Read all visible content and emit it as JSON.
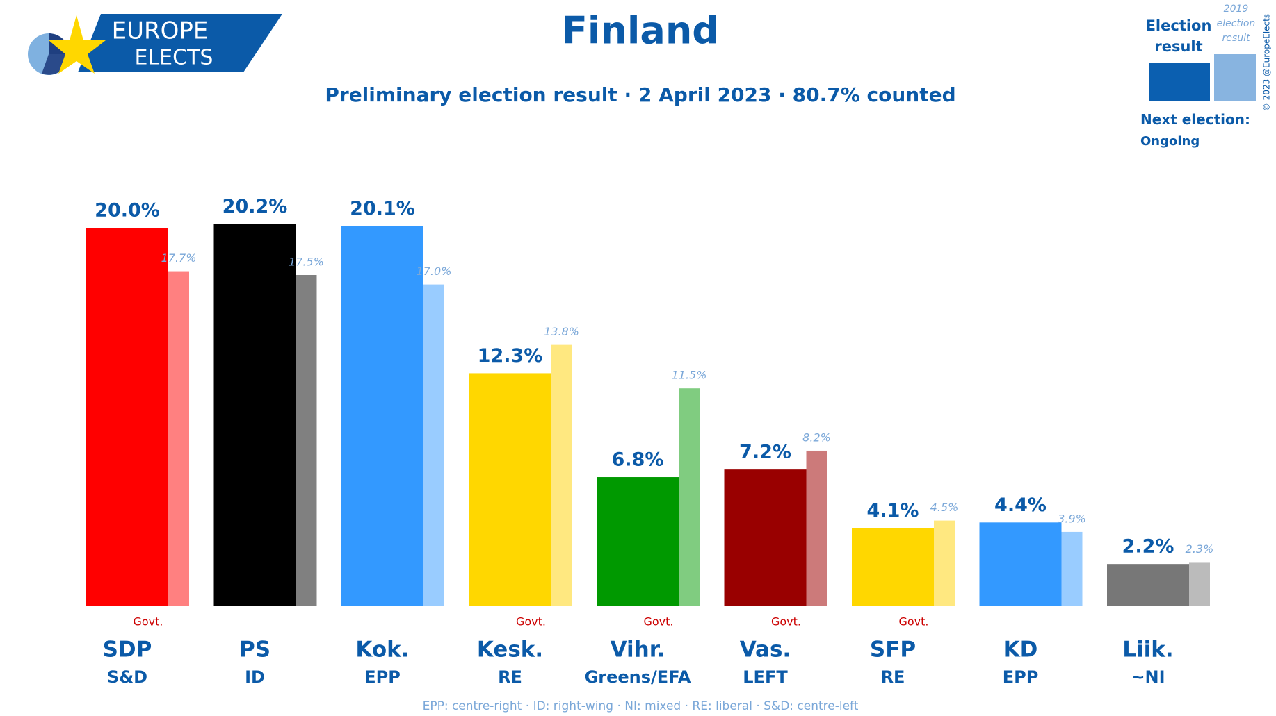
{
  "logo": {
    "line1": "EUROPE",
    "line2": "ELECTS"
  },
  "legend": {
    "next_label": "Next election:",
    "next_value": "Ongoing"
  },
  "copyright": "© 2023 @EuropeElects",
  "chart_data": {
    "type": "bar",
    "title": "Finland",
    "subtitle": "Preliminary election result · 2 April 2023 · 80.7% counted",
    "categories": [
      "SDP",
      "PS",
      "Kok.",
      "Kesk.",
      "Vihr.",
      "Vas.",
      "SFP",
      "KD",
      "Liik."
    ],
    "groups": [
      "S&D",
      "ID",
      "EPP",
      "RE",
      "Greens/EFA",
      "LEFT",
      "RE",
      "EPP",
      "~NI"
    ],
    "govt": [
      "Govt.",
      null,
      null,
      "Govt.",
      "Govt.",
      "Govt.",
      "Govt.",
      null,
      null
    ],
    "series": [
      {
        "name": "Election result",
        "colors": [
          "#ff0000",
          "#000000",
          "#3399ff",
          "#ffd700",
          "#009900",
          "#990000",
          "#ffd700",
          "#3399ff",
          "#777777"
        ],
        "values": [
          20.0,
          20.2,
          20.1,
          12.3,
          6.8,
          7.2,
          4.1,
          4.4,
          2.2
        ],
        "value_labels": [
          "20.0%",
          "20.2%",
          "20.1%",
          "12.3%",
          "6.8%",
          "7.2%",
          "4.1%",
          "4.4%",
          "2.2%"
        ]
      },
      {
        "name": "2019 election result",
        "colors": [
          "#ff8080",
          "#808080",
          "#99ccff",
          "#ffe880",
          "#80cc80",
          "#cc7a7a",
          "#ffe880",
          "#99ccff",
          "#bbbbbb"
        ],
        "values": [
          17.7,
          17.5,
          17.0,
          13.8,
          11.5,
          8.2,
          4.5,
          3.9,
          2.3
        ],
        "value_labels": [
          "17.7%",
          "17.5%",
          "17.0%",
          "13.8%",
          "11.5%",
          "8.2%",
          "4.5%",
          "3.9%",
          "2.3%"
        ]
      }
    ],
    "note": "EPP: centre-right · ID: right-wing · NI: mixed · RE: liberal · S&D: centre-left"
  }
}
